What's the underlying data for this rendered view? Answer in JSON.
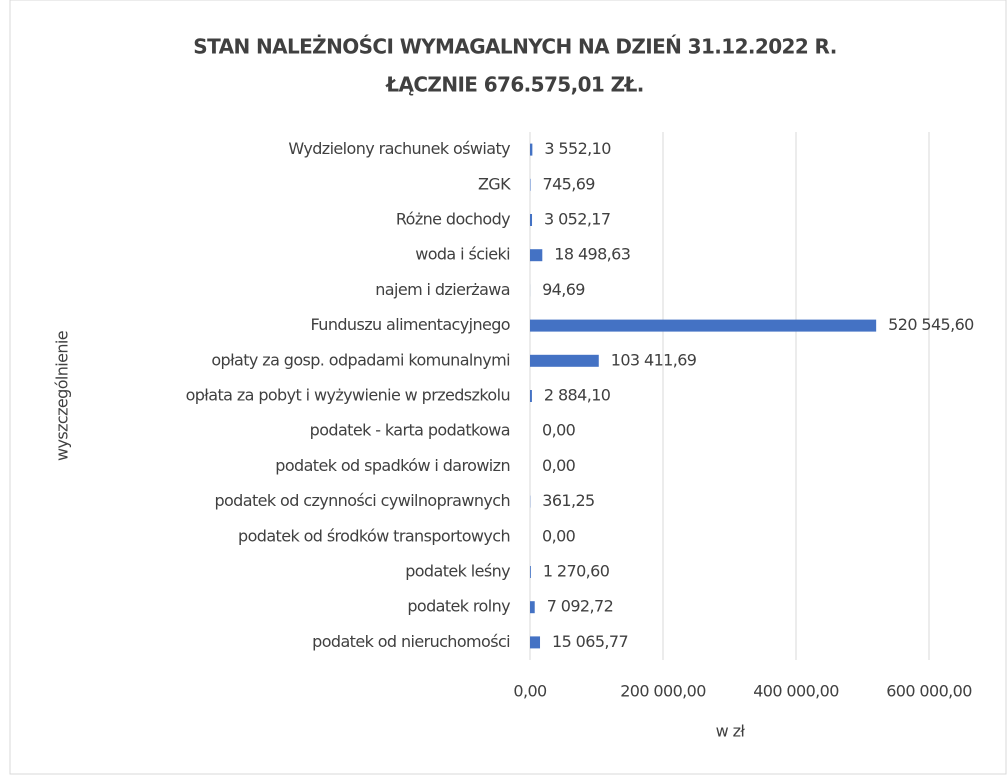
{
  "chart_data": {
    "type": "barh",
    "title": "STAN NALEŻNOŚCI WYMAGALNYCH NA DZIEŃ 31.12.2022  R.",
    "subtitle": "ŁĄCZNIE 676.575,01  ZŁ.",
    "ylabel": "wyszczególnienie",
    "xlabel": "w zł",
    "categories": [
      "Wydzielony rachunek oświaty",
      "ZGK",
      "Różne dochody",
      "woda i ścieki",
      "najem i dzierżawa",
      "Funduszu alimentacyjnego",
      "opłaty za gosp. odpadami komunalnymi",
      "opłata za pobyt i wyżywienie w przedszkolu",
      "podatek - karta podatkowa",
      "podatek od spadków i darowizn",
      "podatek od  czynności cywilnoprawnych",
      "podatek od środków transportowych",
      "podatek leśny",
      "podatek rolny",
      "podatek od nieruchomości"
    ],
    "values": [
      3552.1,
      745.69,
      3052.17,
      18498.63,
      94.69,
      520545.6,
      103411.69,
      2884.1,
      0,
      0,
      361.25,
      0,
      1270.6,
      7092.72,
      15065.77
    ],
    "value_labels": [
      "3 552,10",
      "745,69",
      "3 052,17",
      "18 498,63",
      "94,69",
      "520 545,60",
      "103 411,69",
      "2 884,10",
      "0,00",
      "0,00",
      "361,25",
      "0,00",
      "1 270,60",
      "7 092,72",
      "15 065,77"
    ],
    "color": "#4472c4",
    "xlim": [
      0,
      600000
    ],
    "xticks": [
      {
        "value": 0,
        "label": "0,00"
      },
      {
        "value": 200000,
        "label": "200 000,00"
      },
      {
        "value": 400000,
        "label": "400 000,00"
      },
      {
        "value": 600000,
        "label": "600 000,00"
      }
    ],
    "grid": true
  }
}
